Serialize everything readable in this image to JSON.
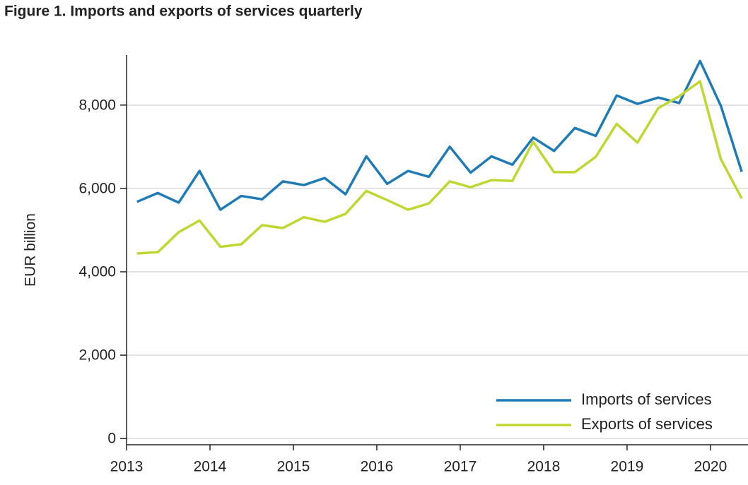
{
  "chart_data": {
    "type": "line",
    "title": "Figure 1. Imports and exports of services quarterly",
    "y_label": "EUR billion",
    "x": [
      2013.125,
      2013.375,
      2013.625,
      2013.875,
      2014.125,
      2014.375,
      2014.625,
      2014.875,
      2015.125,
      2015.375,
      2015.625,
      2015.875,
      2016.125,
      2016.375,
      2016.625,
      2016.875,
      2017.125,
      2017.375,
      2017.625,
      2017.875,
      2018.125,
      2018.375,
      2018.625,
      2018.875,
      2019.125,
      2019.375,
      2019.625,
      2019.875,
      2020.125,
      2020.375
    ],
    "series": [
      {
        "name": "Imports of services",
        "color": "#1f7bb5",
        "values": [
          5680,
          5890,
          5660,
          6420,
          5490,
          5820,
          5740,
          6170,
          6080,
          6250,
          5860,
          6770,
          6110,
          6420,
          6280,
          7000,
          6380,
          6770,
          6570,
          7220,
          6900,
          7450,
          7260,
          8230,
          8030,
          8180,
          8050,
          9060,
          7980,
          6400
        ]
      },
      {
        "name": "Exports of services",
        "color": "#bfd730",
        "values": [
          4440,
          4470,
          4950,
          5230,
          4600,
          4660,
          5120,
          5050,
          5310,
          5200,
          5390,
          5940,
          5720,
          5490,
          5640,
          6170,
          6030,
          6200,
          6180,
          7120,
          6390,
          6390,
          6760,
          7550,
          7100,
          7930,
          8210,
          8570,
          6700,
          5760
        ]
      }
    ],
    "xlim": [
      2013,
      2020.45
    ],
    "xticks": [
      2013,
      2014,
      2015,
      2016,
      2017,
      2018,
      2019,
      2020
    ],
    "ylim": [
      -150,
      9200
    ],
    "yticks": [
      {
        "value": 0,
        "label": "0"
      },
      {
        "value": 2000,
        "label": "2,000"
      },
      {
        "value": 4000,
        "label": "4,000"
      },
      {
        "value": 6000,
        "label": "6,000"
      },
      {
        "value": 8000,
        "label": "8,000"
      }
    ],
    "grid": true,
    "legend": "lower right"
  }
}
